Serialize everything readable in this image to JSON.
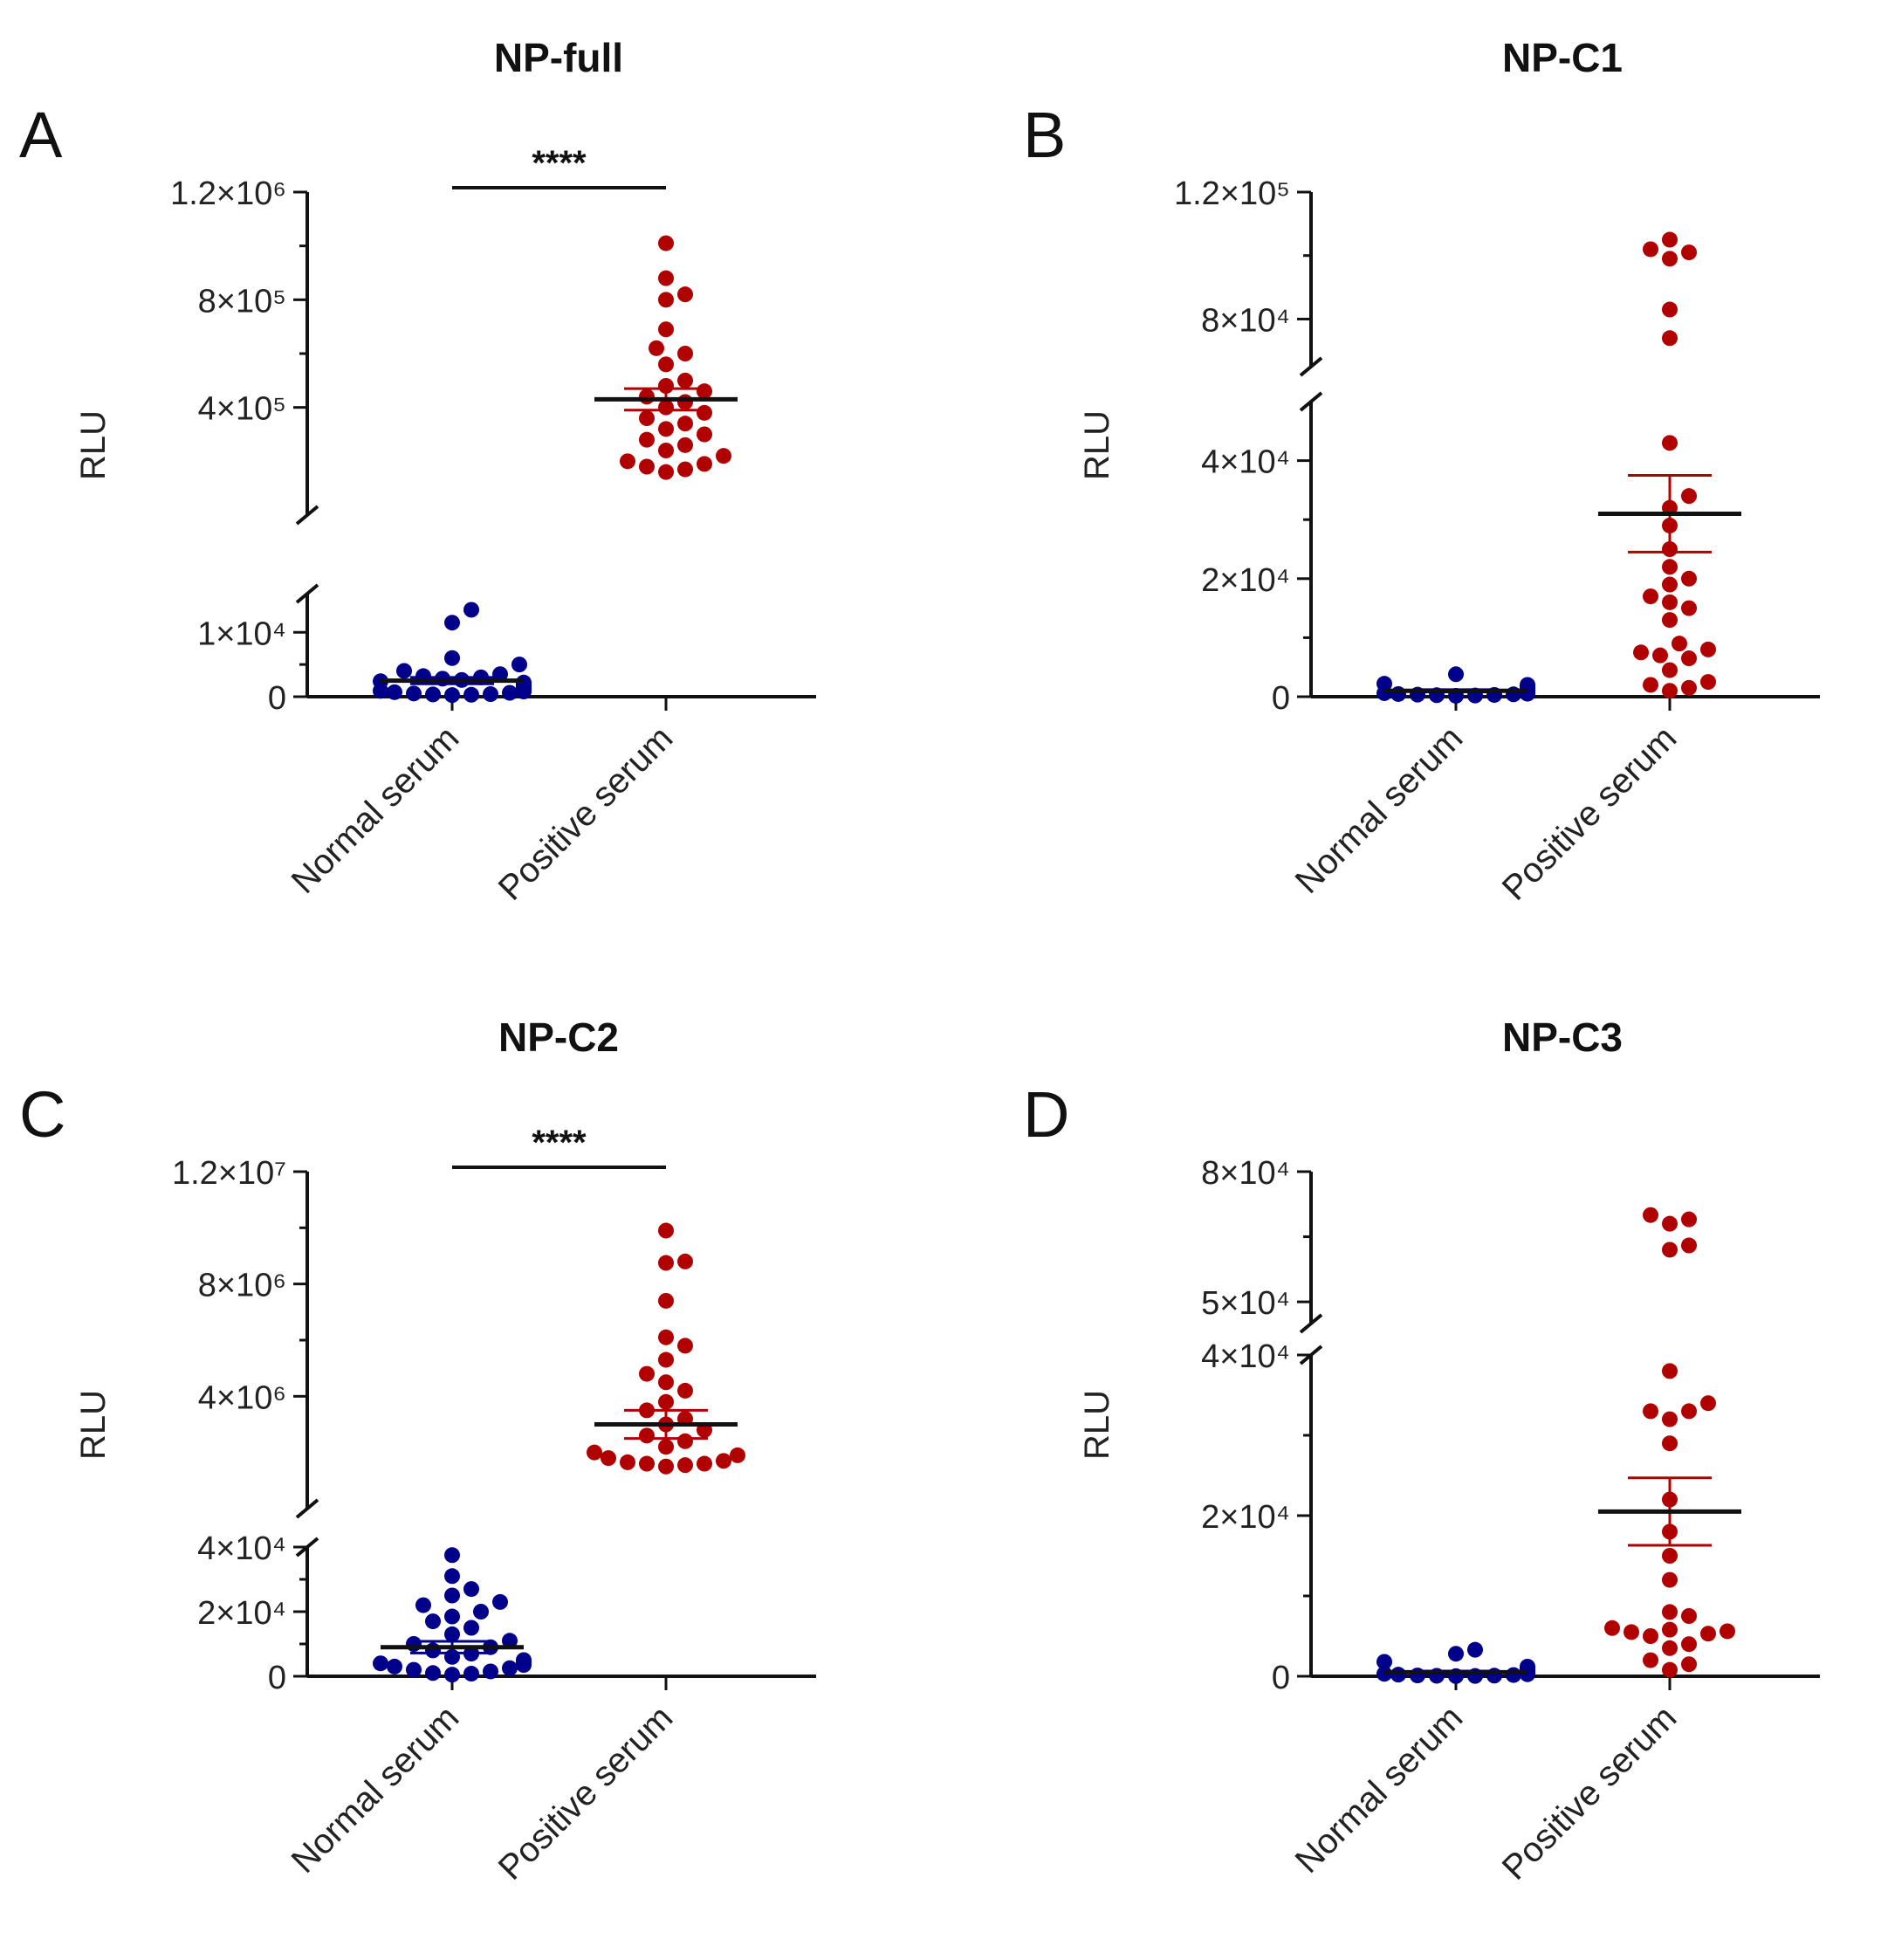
{
  "chart_data": [
    {
      "letter": "A",
      "title": "NP-full",
      "type": "scatter",
      "ylabel": "RLU",
      "categories": [
        "Normal serum",
        "Positive serum"
      ],
      "significance": "****",
      "segments": [
        {
          "range": [
            0,
            16000
          ],
          "ticks": [
            {
              "value": 0,
              "label": "0"
            },
            {
              "value": 10000,
              "label": "1×10⁴"
            }
          ]
        },
        {
          "range": [
            0,
            1200000
          ],
          "ticks": [
            {
              "value": 400000,
              "label": "4×10⁵"
            },
            {
              "value": 800000,
              "label": "8×10⁵"
            },
            {
              "value": 1200000,
              "label": "1.2×10⁶"
            }
          ]
        }
      ],
      "series": [
        {
          "color": "#00008b",
          "values": [
            13500,
            11500,
            6000,
            5000,
            4000,
            3500,
            3200,
            3000,
            2800,
            2600,
            2400,
            2200,
            2000,
            1800,
            1600,
            1500,
            1400,
            1300,
            1200,
            1100,
            1000,
            900,
            800,
            700,
            600,
            500,
            400,
            350,
            300,
            250
          ],
          "mean": 2500,
          "sem": 500
        },
        {
          "color": "#b00000",
          "values": [
            1010000,
            880000,
            820000,
            800000,
            690000,
            620000,
            600000,
            560000,
            500000,
            480000,
            460000,
            440000,
            420000,
            400000,
            380000,
            360000,
            340000,
            320000,
            300000,
            280000,
            260000,
            240000,
            220000,
            200000,
            190000,
            180000,
            170000,
            160000
          ],
          "mean": 430000,
          "sem": 40000
        }
      ]
    },
    {
      "letter": "B",
      "title": "NP-C1",
      "type": "scatter",
      "ylabel": "RLU",
      "categories": [
        "Normal serum",
        "Positive serum"
      ],
      "significance": "",
      "segments": [
        {
          "range": [
            0,
            50000
          ],
          "ticks": [
            {
              "value": 0,
              "label": "0"
            },
            {
              "value": 20000,
              "label": "2×10⁴"
            },
            {
              "value": 40000,
              "label": "4×10⁴"
            }
          ]
        },
        {
          "range": [
            65000,
            120000
          ],
          "ticks": [
            {
              "value": 80000,
              "label": "8×10⁴"
            },
            {
              "value": 120000,
              "label": "1.2×10⁵"
            }
          ]
        }
      ],
      "series": [
        {
          "color": "#00008b",
          "values": [
            3800,
            2200,
            2000,
            1800,
            1700,
            1600,
            1500,
            1400,
            1300,
            1200,
            1100,
            1000,
            900,
            800,
            700,
            600,
            500,
            450,
            400,
            350,
            300,
            250,
            200,
            150
          ],
          "mean": 1000,
          "sem": 200
        },
        {
          "color": "#b00000",
          "values": [
            105000,
            102000,
            101000,
            99000,
            83000,
            74000,
            43000,
            34000,
            32000,
            29000,
            25000,
            22000,
            20000,
            19000,
            17000,
            16000,
            15000,
            13000,
            9000,
            8000,
            7500,
            7000,
            6500,
            4500,
            2500,
            2000,
            1500,
            1000
          ],
          "mean": 31000,
          "sem": 6500
        }
      ]
    },
    {
      "letter": "C",
      "title": "NP-C2",
      "type": "scatter",
      "ylabel": "RLU",
      "categories": [
        "Normal serum",
        "Positive serum"
      ],
      "significance": "****",
      "segments": [
        {
          "range": [
            0,
            40000
          ],
          "ticks": [
            {
              "value": 0,
              "label": "0"
            },
            {
              "value": 20000,
              "label": "2×10⁴"
            },
            {
              "value": 40000,
              "label": "4×10⁴"
            }
          ]
        },
        {
          "range": [
            0,
            12000000
          ],
          "ticks": [
            {
              "value": 4000000,
              "label": "4×10⁶"
            },
            {
              "value": 8000000,
              "label": "8×10⁶"
            },
            {
              "value": 12000000,
              "label": "1.2×10⁷"
            }
          ]
        }
      ],
      "series": [
        {
          "color": "#00008b",
          "values": [
            37500,
            31000,
            27000,
            25000,
            23000,
            22000,
            20000,
            18500,
            17000,
            15000,
            13000,
            11000,
            10000,
            9000,
            8000,
            7000,
            6000,
            5000,
            4500,
            4000,
            3500,
            3000,
            2500,
            2000,
            1500,
            1000,
            800,
            500
          ],
          "mean": 9000,
          "sem": 1800
        },
        {
          "color": "#b00000",
          "values": [
            9900000,
            8800000,
            8750000,
            7400000,
            6100000,
            5800000,
            5300000,
            4800000,
            4500000,
            4200000,
            3800000,
            3500000,
            3200000,
            3000000,
            2800000,
            2600000,
            2400000,
            2200000,
            2000000,
            1900000,
            1800000,
            1700000,
            1650000,
            1600000,
            1600000,
            1550000,
            1500000
          ],
          "mean": 3000000,
          "sem": 500000
        }
      ]
    },
    {
      "letter": "D",
      "title": "NP-C3",
      "type": "scatter",
      "ylabel": "RLU",
      "categories": [
        "Normal serum",
        "Positive serum"
      ],
      "significance": "",
      "segments": [
        {
          "range": [
            0,
            40000
          ],
          "ticks": [
            {
              "value": 0,
              "label": "0"
            },
            {
              "value": 20000,
              "label": "2×10⁴"
            },
            {
              "value": 40000,
              "label": "4×10⁴"
            }
          ]
        },
        {
          "range": [
            45000,
            80000
          ],
          "ticks": [
            {
              "value": 50000,
              "label": "5×10⁴"
            },
            {
              "value": 80000,
              "label": "8×10⁴"
            }
          ]
        }
      ],
      "series": [
        {
          "color": "#00008b",
          "values": [
            3300,
            2800,
            1800,
            1200,
            1000,
            900,
            800,
            700,
            650,
            600,
            550,
            500,
            450,
            400,
            350,
            300,
            250,
            200,
            150,
            100,
            80,
            60,
            40,
            20
          ],
          "mean": 500,
          "sem": 150
        },
        {
          "color": "#b00000",
          "values": [
            70000,
            69000,
            68000,
            63000,
            62000,
            38000,
            34000,
            33000,
            33000,
            32000,
            29000,
            22000,
            18000,
            15000,
            12000,
            8000,
            7500,
            6000,
            5800,
            5600,
            5500,
            5300,
            5000,
            4000,
            3500,
            2000,
            1500,
            800
          ],
          "mean": 20500,
          "sem": 4200
        }
      ]
    }
  ]
}
